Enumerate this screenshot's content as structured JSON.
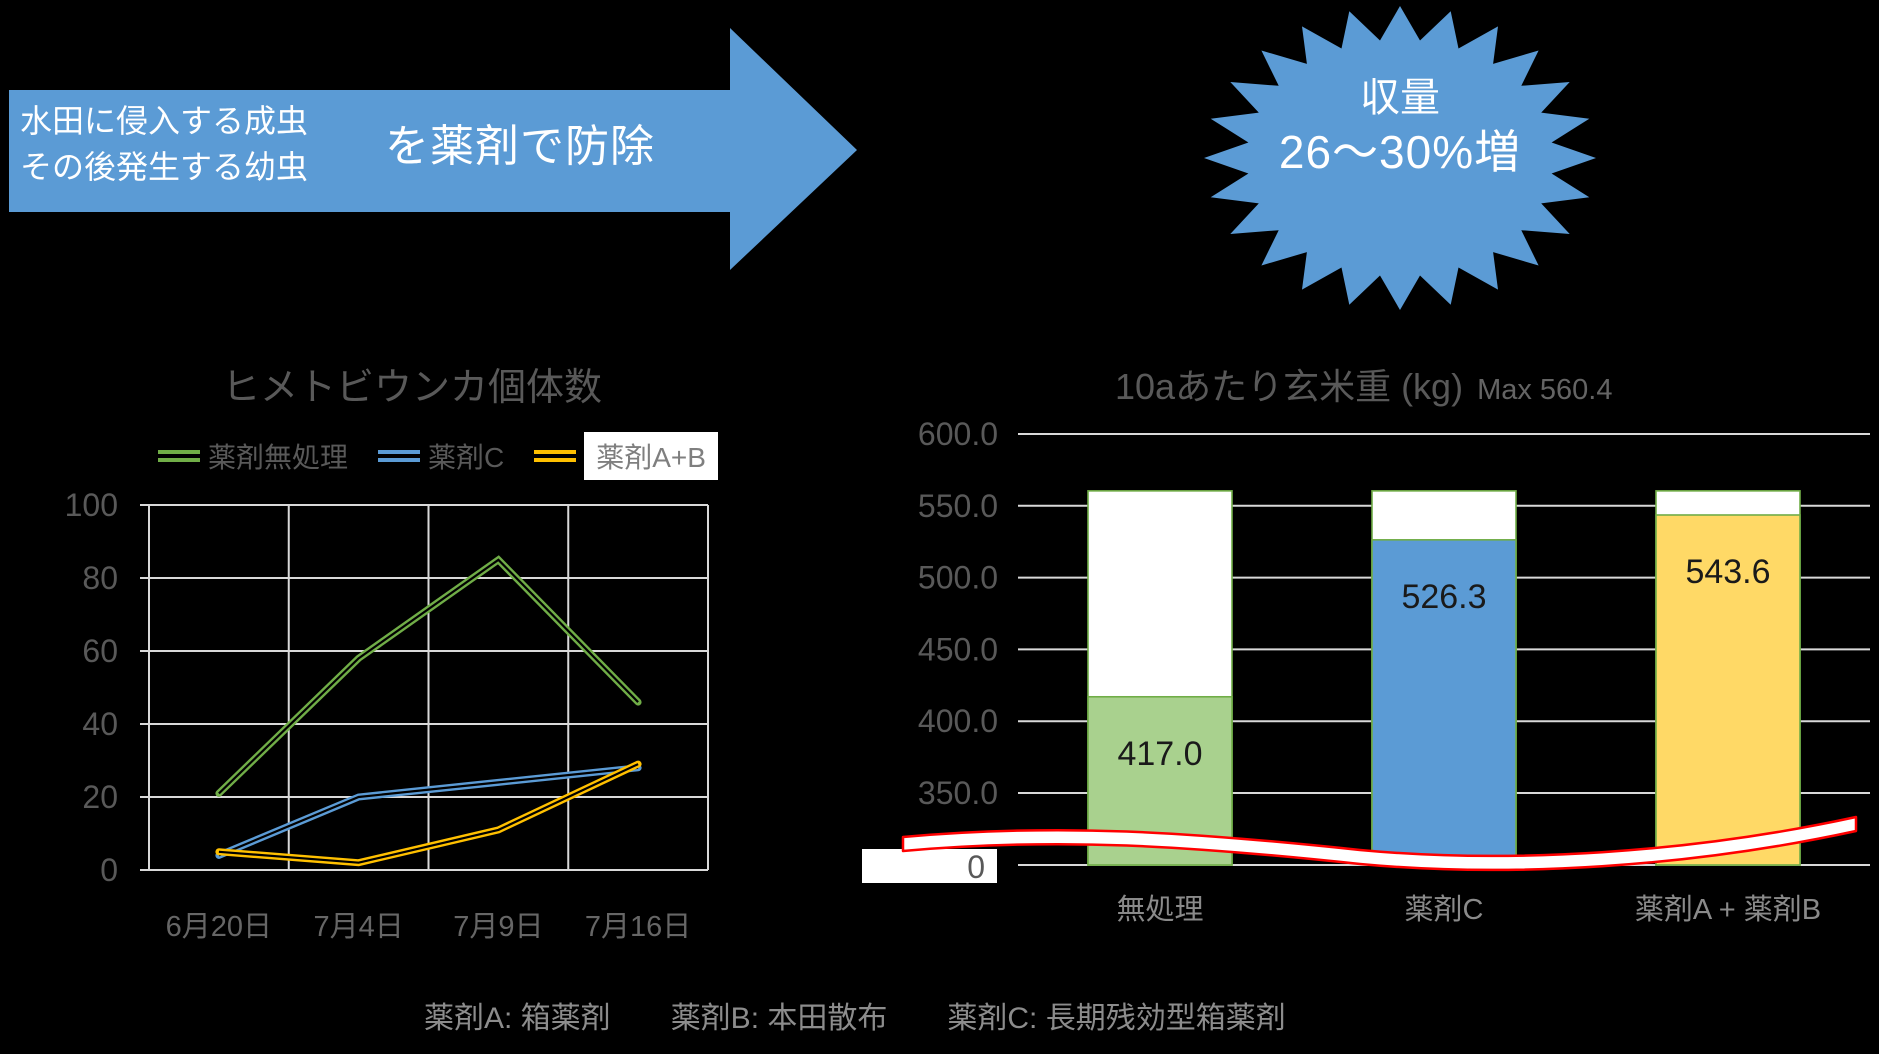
{
  "arrow": {
    "color": "#5B9BD5",
    "line1": "水田に侵入する成虫",
    "line2": "その後発生する幼虫",
    "label": "を薬剤で防除",
    "text_color": "#FFFFFF"
  },
  "burst": {
    "color": "#5B9BD5",
    "line1": "収量",
    "line2": "26〜30%増",
    "text_color": "#FFFFFF"
  },
  "caption": {
    "items": [
      "薬剤A: 箱薬剤",
      "薬剤B: 本田散布",
      "薬剤C: 長期残効型箱薬剤"
    ]
  },
  "colors": {
    "background": "#000000",
    "grid": "#D9D9D9",
    "axis_text": "#595959",
    "category_text_left": "#666666",
    "category_text_right": "#8A8A8A",
    "value_label": "#1A1A1A",
    "accent_blue": "#5B9BD5",
    "accent_green": "#70AD47",
    "accent_green_light": "#A9D18E",
    "accent_gold": "#FFC000",
    "accent_gold_light": "#FFD966",
    "axis_break_red": "#FF0000"
  },
  "chart_data": [
    {
      "type": "line",
      "title": "ヒメトビウンカ個体数",
      "categories": [
        "6月20日",
        "7月4日",
        "7月9日",
        "7月16日"
      ],
      "series": [
        {
          "name": "薬剤無処理",
          "color": "#70AD47",
          "values": [
            21,
            58,
            85,
            46
          ],
          "legend_highlight": false
        },
        {
          "name": "薬剤C",
          "color": "#5B9BD5",
          "values": [
            4,
            20,
            24,
            28
          ],
          "legend_highlight": false
        },
        {
          "name": "薬剤A+B",
          "color": "#FFC000",
          "values": [
            5,
            2,
            11,
            29
          ],
          "legend_highlight": true
        }
      ],
      "ylim": [
        0,
        100
      ],
      "yticks": [
        0,
        20,
        40,
        60,
        80,
        100
      ],
      "grid": true,
      "legend_position": "top"
    },
    {
      "type": "bar",
      "title": "10aあたり玄米重 (kg)",
      "title_suffix": "Max 560.4",
      "max_reference": 560.4,
      "categories": [
        "無処理",
        "薬剤C",
        "薬剤A + 薬剤B"
      ],
      "values": [
        417.0,
        526.3,
        543.6
      ],
      "value_labels": [
        "417.0",
        "526.3",
        "543.6"
      ],
      "bar_colors": [
        "#A9D18E",
        "#5B9BD5",
        "#FFD966"
      ],
      "bar_border": "#70AD47",
      "bar_cap_fill": "#FFFFFF",
      "yticks": [
        600,
        550,
        500,
        450,
        400,
        350
      ],
      "ytick_labels": [
        "600.0",
        "550.0",
        "500.0",
        "450.0",
        "400.0",
        "350.0"
      ],
      "zero_label": "0",
      "axis_break": true,
      "ylim_display": [
        350,
        600
      ],
      "grid": true,
      "legend_position": "none"
    }
  ]
}
